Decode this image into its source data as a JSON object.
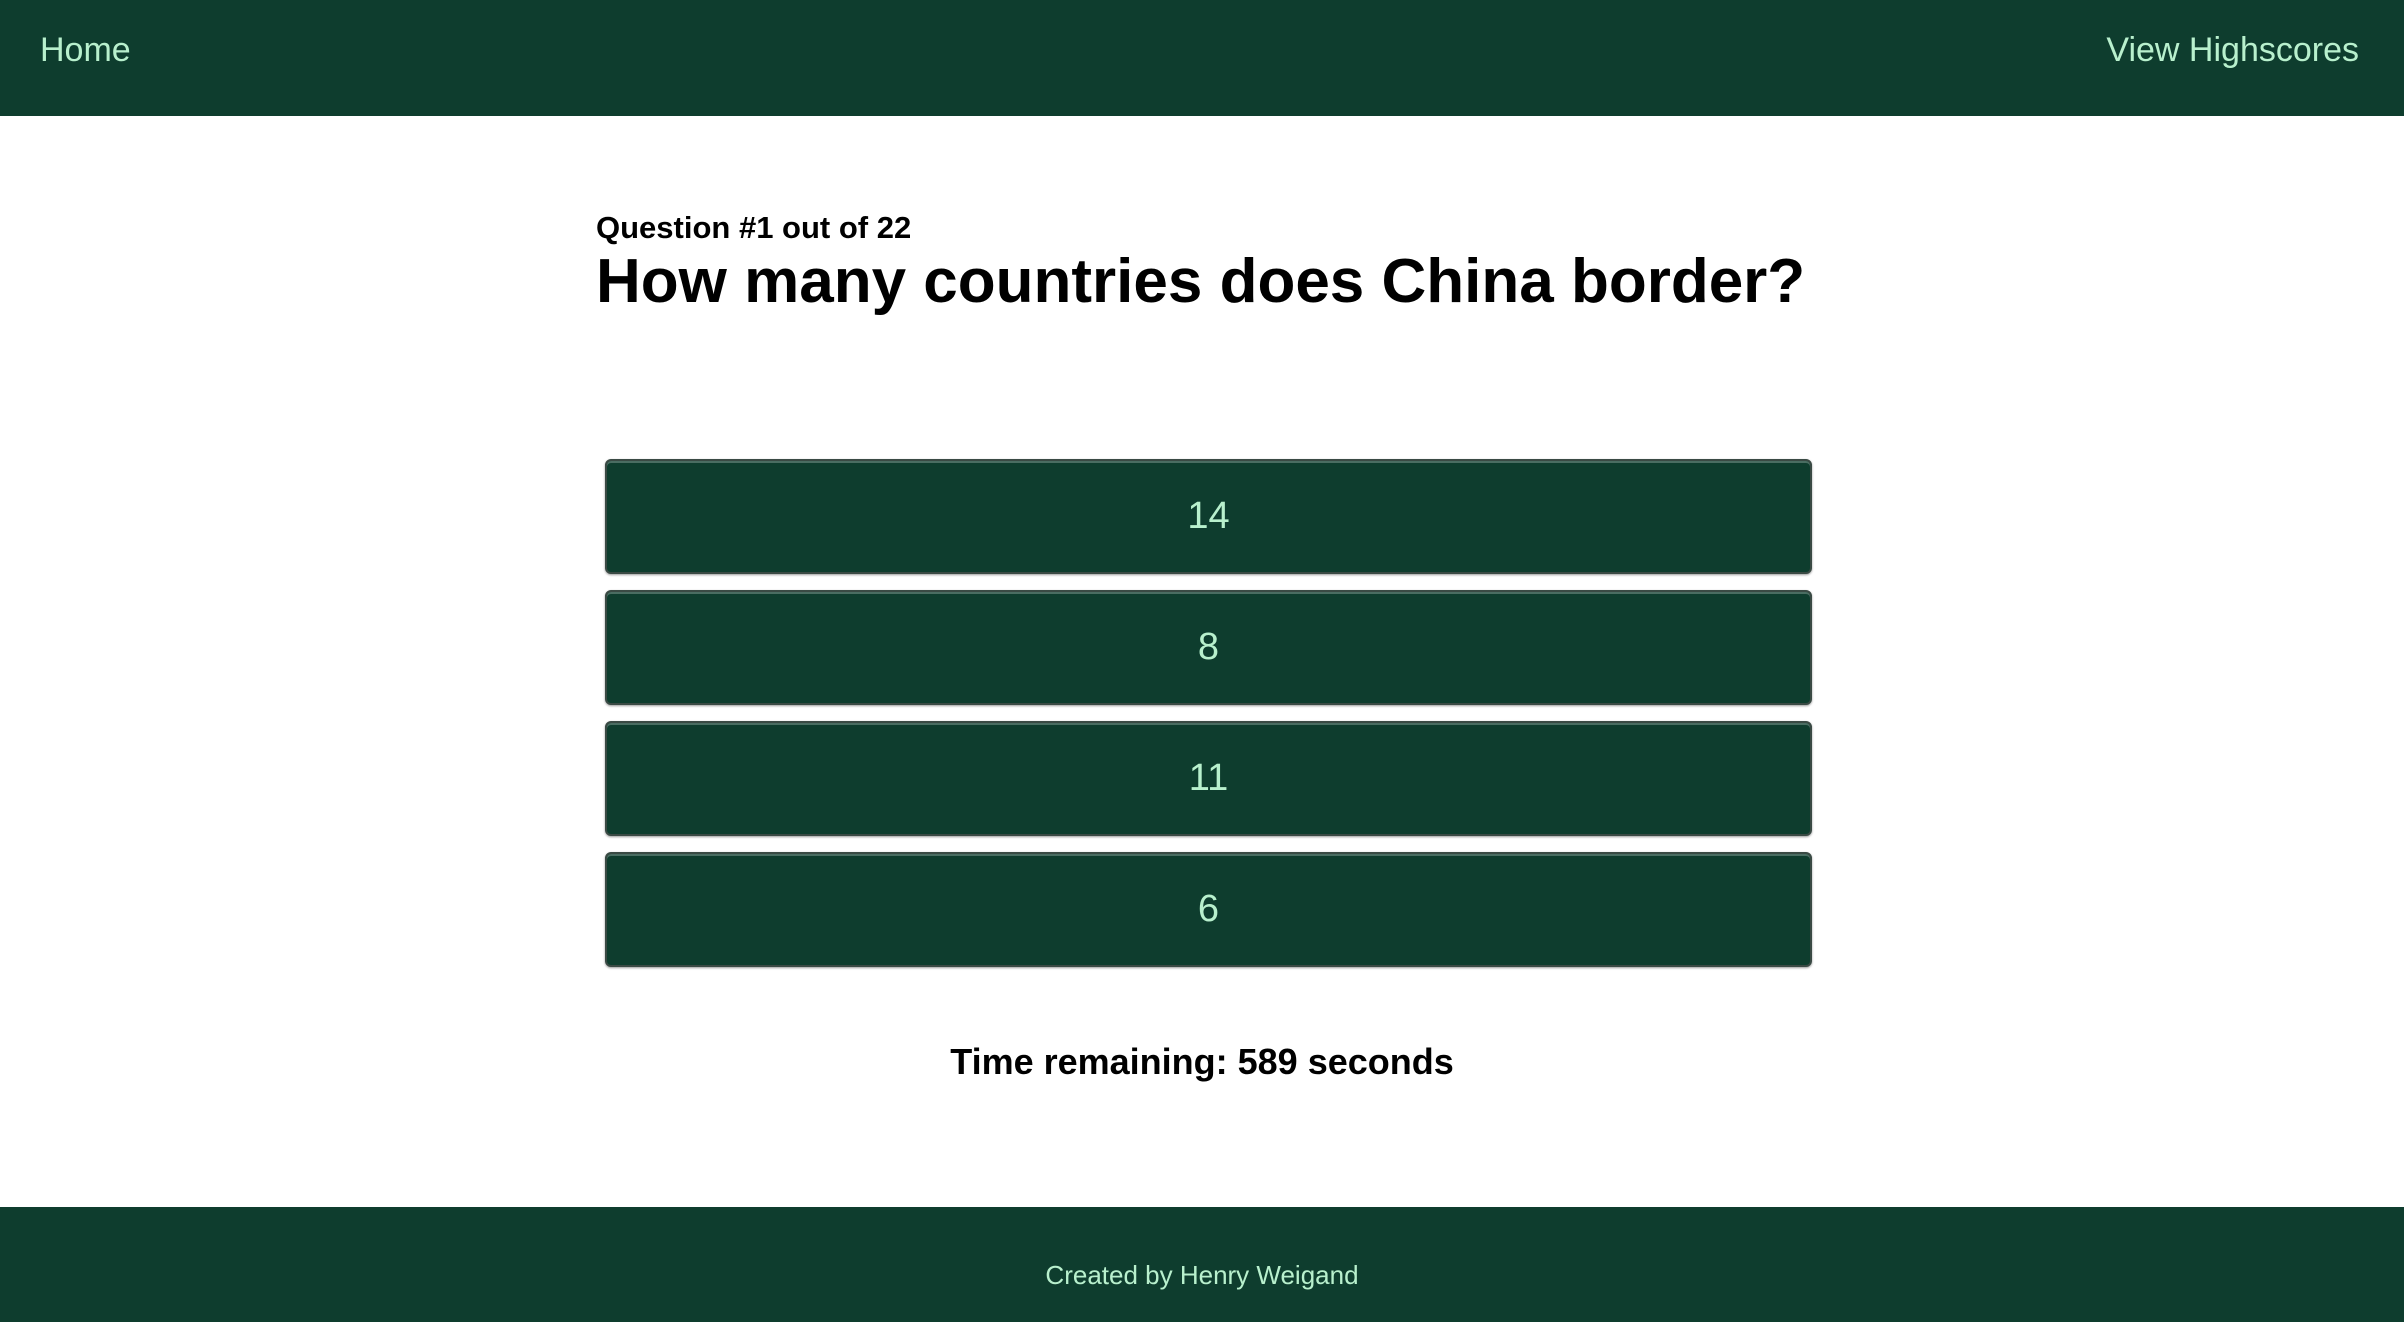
{
  "header": {
    "home_label": "Home",
    "highscores_label": "View Highscores"
  },
  "quiz": {
    "counter": "Question #1 out of 22",
    "question": "How many countries does China border?",
    "answers": [
      "14",
      "8",
      "11",
      "6"
    ],
    "timer": "Time remaining: 589 seconds"
  },
  "footer": {
    "credit": "Created by Henry Weigand"
  },
  "colors": {
    "primary": "#0e3d2e",
    "accent_text": "#b8f0cd"
  }
}
